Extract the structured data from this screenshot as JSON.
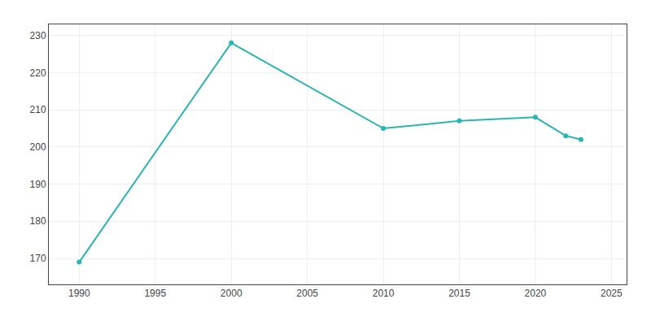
{
  "chart_data": {
    "type": "line",
    "x": [
      1990,
      2000,
      2010,
      2015,
      2020,
      2022,
      2023
    ],
    "values": [
      169,
      228,
      205,
      207,
      208,
      203,
      202
    ],
    "color": "#2ab5b5",
    "marker": "circle",
    "xlim": [
      1988,
      2026
    ],
    "ylim": [
      163,
      233
    ],
    "xticks": [
      1990,
      1995,
      2000,
      2005,
      2010,
      2015,
      2020,
      2025
    ],
    "yticks": [
      170,
      180,
      190,
      200,
      210,
      220,
      230
    ],
    "grid": true
  }
}
